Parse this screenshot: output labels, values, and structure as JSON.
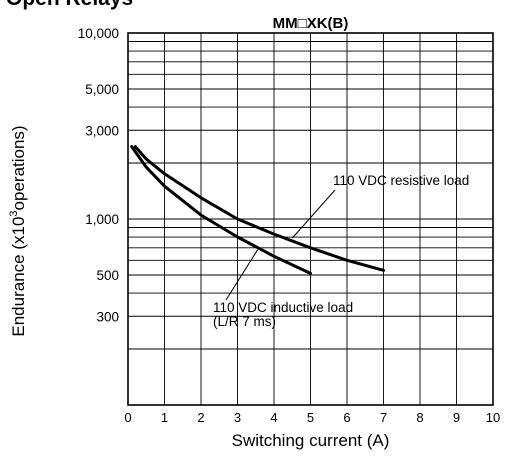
{
  "heading": "Open Relays",
  "chart_data": {
    "type": "line",
    "title": "MM□XK(B)",
    "xlabel": "Switching current (A)",
    "ylabel_prefix": "Endurance (x10",
    "ylabel_exponent": "3",
    "ylabel_suffix": "operations)",
    "x_scale": "linear",
    "y_scale": "log",
    "xlim": [
      0,
      10
    ],
    "ylim": [
      100,
      10000
    ],
    "x_ticks": [
      0,
      1,
      2,
      3,
      4,
      5,
      6,
      7,
      8,
      9,
      10
    ],
    "x_tick_labels": [
      "0",
      "1",
      "2",
      "3",
      "4",
      "5",
      "6",
      "7",
      "8",
      "9",
      "10"
    ],
    "y_ticks": [
      300,
      500,
      1000,
      3000,
      5000,
      10000
    ],
    "y_tick_labels": [
      "300",
      "500",
      "1,000",
      "3,000",
      "5,000",
      "10,000"
    ],
    "grid": true,
    "series": [
      {
        "name": "110 VDC resistive load",
        "x": [
          0.2,
          0.5,
          1,
          2,
          3,
          4,
          5,
          6,
          7
        ],
        "y": [
          2450,
          2100,
          1750,
          1300,
          1000,
          830,
          700,
          600,
          530
        ]
      },
      {
        "name": "110 VDC inductive load",
        "x": [
          0.1,
          0.5,
          1,
          2,
          3,
          4,
          5
        ],
        "y": [
          2450,
          1900,
          1500,
          1050,
          800,
          630,
          510
        ]
      }
    ],
    "annotations": [
      {
        "text": "110 VDC resistive load",
        "target_series": 0
      },
      {
        "text": "110 VDC inductive load",
        "target_series": 1
      },
      {
        "text": "(L/R 7 ms)",
        "target_series": 1
      }
    ]
  }
}
